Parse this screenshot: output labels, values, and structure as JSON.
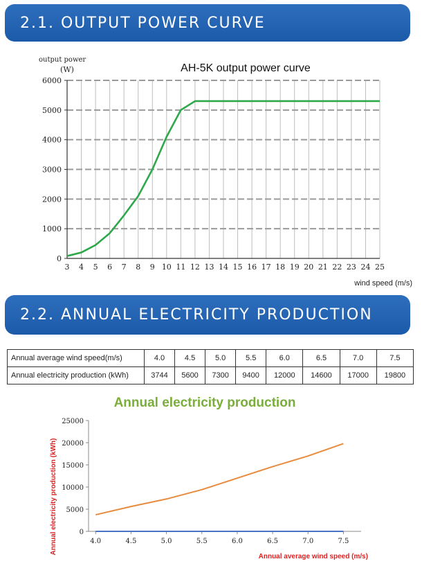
{
  "sections": {
    "power_curve_title": "2.1. OUTPUT POWER CURVE",
    "annual_title": "2.2. ANNUAL ELECTRICITY PRODUCTION"
  },
  "colors": {
    "banner": "#1f5fad",
    "power_curve_line": "#2ea84a",
    "production_line": "#e98b3d",
    "baseline_line": "#4a74c4",
    "annual_title_color": "#7aae3a",
    "annual_axis_label_color": "#e02020"
  },
  "table": {
    "rows": [
      {
        "label": "Annual average wind speed(m/s)",
        "cells": [
          "4.0",
          "4.5",
          "5.0",
          "5.5",
          "6.0",
          "6.5",
          "7.0",
          "7.5"
        ]
      },
      {
        "label": "Annual electricity production (kWh)",
        "cells": [
          "3744",
          "5600",
          "7300",
          "9400",
          "12000",
          "14600",
          "17000",
          "19800"
        ]
      }
    ]
  },
  "chart_data": [
    {
      "type": "line",
      "title": "AH-5K output power curve",
      "ylabel_line1": "output power",
      "ylabel_line2": "(W)",
      "xlabel": "wind speed (m/s)",
      "xlim": [
        3,
        25
      ],
      "ylim": [
        0,
        6000
      ],
      "x_ticks": [
        3,
        4,
        5,
        6,
        7,
        8,
        9,
        10,
        11,
        12,
        13,
        14,
        15,
        16,
        17,
        18,
        19,
        20,
        21,
        22,
        23,
        24,
        25
      ],
      "y_ticks": [
        0,
        1000,
        2000,
        3000,
        4000,
        5000,
        6000
      ],
      "grid": true,
      "series": [
        {
          "x": [
            3,
            4,
            5,
            6,
            7,
            8,
            9,
            10,
            11,
            12,
            25
          ],
          "y": [
            80,
            200,
            450,
            850,
            1450,
            2100,
            3000,
            4100,
            5000,
            5300,
            5300
          ]
        }
      ]
    },
    {
      "type": "line",
      "title": "Annual  electricity production",
      "ylabel": "Annual  electricity production  (kWh)",
      "xlabel": "Annual average wind speed  (m/s)",
      "xlim": [
        3.9,
        7.75
      ],
      "ylim": [
        0,
        25000
      ],
      "x_ticks": [
        "4.0",
        "4.5",
        "5.0",
        "5.5",
        "6.0",
        "6.5",
        "7.0",
        "7.5"
      ],
      "y_ticks": [
        0,
        5000,
        10000,
        15000,
        20000,
        25000
      ],
      "grid": false,
      "series": [
        {
          "x": [
            4.0,
            4.5,
            5.0,
            5.5,
            6.0,
            6.5,
            7.0,
            7.5
          ],
          "y": [
            3744,
            5600,
            7300,
            9400,
            12000,
            14600,
            17000,
            19800
          ]
        },
        {
          "x": [
            4.0,
            4.5,
            5.0,
            5.5,
            6.0,
            6.5,
            7.0,
            7.5
          ],
          "y": [
            0,
            0,
            0,
            0,
            0,
            0,
            0,
            0
          ]
        }
      ]
    }
  ]
}
